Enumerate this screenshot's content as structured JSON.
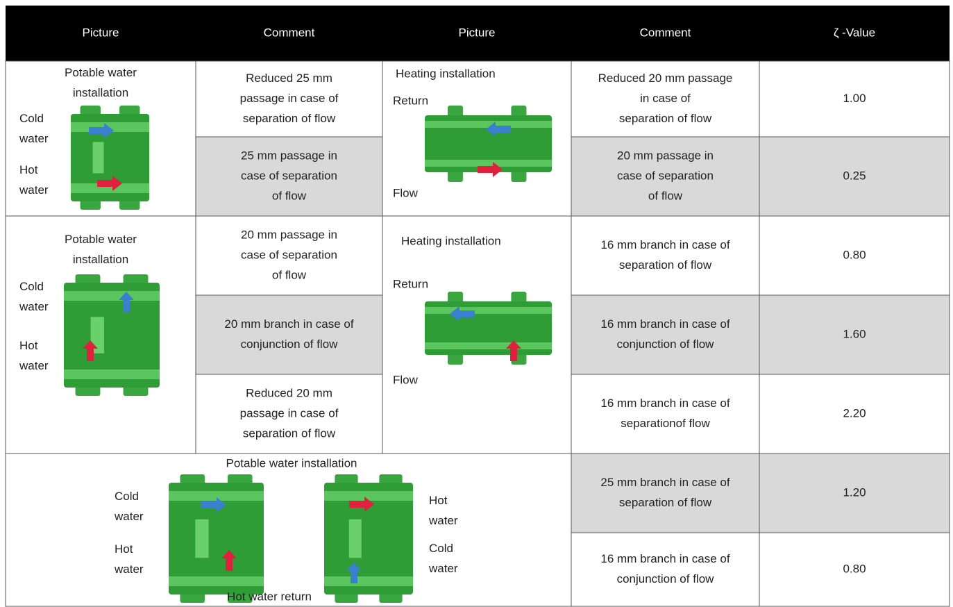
{
  "table": {
    "header": [
      "Picture",
      "Comment",
      "Picture",
      "Comment",
      "ζ -Value"
    ],
    "sections": [
      {
        "pictures": [
          {
            "title": [
              "Potable water",
              "installation"
            ],
            "labels": [
              [
                "Cold",
                "water"
              ],
              [
                "Hot",
                "water"
              ]
            ]
          },
          {
            "title": [
              "Heating installation"
            ],
            "labels": [
              [
                "Return"
              ],
              [
                "Flow"
              ]
            ]
          }
        ],
        "rows": [
          {
            "comments": [
              [
                "Reduced 25 mm",
                "passage in case of",
                "separation of flow"
              ],
              [
                "Reduced 20 mm     passage",
                "in case of",
                "separation of flow"
              ]
            ],
            "value": "1.00",
            "shaded": false
          },
          {
            "comments": [
              [
                "25 mm passage in",
                "case of separation",
                "of flow"
              ],
              [
                "20 mm passage in",
                "case of separation",
                "of flow"
              ]
            ],
            "value": "0.25",
            "shaded": true
          }
        ]
      },
      {
        "pictures": [
          {
            "title": [
              "Potable water",
              "installation"
            ],
            "labels": [
              [
                "Cold",
                "water"
              ],
              [
                "Hot",
                "water"
              ]
            ]
          },
          {
            "title": [
              "Heating installation"
            ],
            "labels": [
              [
                "Return"
              ],
              [
                "Flow"
              ]
            ]
          }
        ],
        "rows": [
          {
            "comments": [
              [
                "20 mm passage in",
                "case of separation",
                "of flow"
              ],
              [
                "16 mm branch in case of",
                "separation of flow"
              ]
            ],
            "value": "0.80",
            "shaded": false
          },
          {
            "comments": [
              [
                "20 mm branch in case of",
                "conjunction of flow"
              ],
              [
                "16 mm branch in case of",
                "conjunction of flow"
              ]
            ],
            "value": "1.60",
            "shaded": true
          },
          {
            "comments": [
              [
                "Reduced 20 mm",
                "passage in case of",
                "separation of flow"
              ],
              [
                "16 mm branch in case of",
                "separationof flow"
              ]
            ],
            "value": "2.20",
            "shaded": false
          }
        ]
      },
      {
        "pictures": [
          {
            "title": [
              "Potable water installation"
            ],
            "labels": [
              [
                "Cold",
                "water"
              ],
              [
                "Hot",
                "water"
              ],
              [
                "Hot",
                "water"
              ],
              [
                "Cold",
                "water"
              ]
            ],
            "footer": [
              "Hot water return"
            ]
          }
        ],
        "rows": [
          {
            "comments": [
              [
                "25 mm branch in case of",
                "separation of flow"
              ]
            ],
            "value": "1.20",
            "shaded": true
          },
          {
            "comments": [
              [
                "16 mm branch in case of",
                "conjunction of flow"
              ]
            ],
            "value": "0.80",
            "shaded": false
          }
        ]
      }
    ]
  }
}
